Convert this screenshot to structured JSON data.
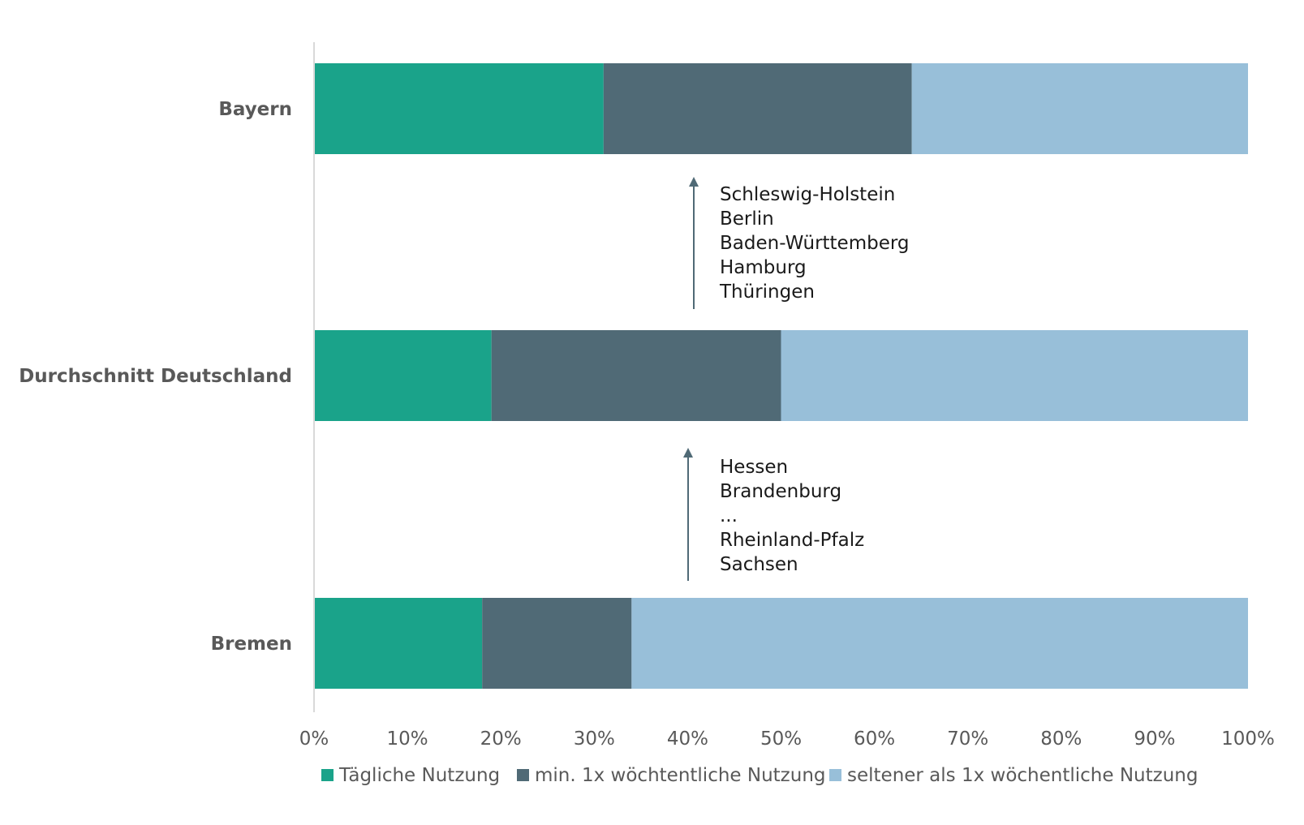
{
  "chart_data": {
    "type": "bar",
    "orientation": "horizontal",
    "stacked": "100%",
    "categories": [
      "Bayern",
      "Durchschnitt Deutschland",
      "Bremen"
    ],
    "series": [
      {
        "name": "Tägliche Nutzung",
        "values": [
          31,
          19,
          18
        ],
        "color": "#1aa38a"
      },
      {
        "name": "min. 1x wöchtentliche Nutzung",
        "values": [
          33,
          31,
          16
        ],
        "color": "#506a76"
      },
      {
        "name": "seltener als 1x wöchentliche Nutzung",
        "values": [
          36,
          50,
          66
        ],
        "color": "#98bfd9"
      }
    ],
    "xlim": [
      0,
      100
    ],
    "x_ticks": [
      "0%",
      "10%",
      "20%",
      "30%",
      "40%",
      "50%",
      "60%",
      "70%",
      "80%",
      "90%",
      "100%"
    ],
    "legend_position": "bottom",
    "grid": false,
    "annotations": [
      {
        "between": [
          "Durchschnitt Deutschland",
          "Bayern"
        ],
        "arrow": "up",
        "lines": [
          "Schleswig-Holstein",
          "Berlin",
          "Baden-Württemberg",
          "Hamburg",
          "Thüringen"
        ]
      },
      {
        "between": [
          "Bremen",
          "Durchschnitt Deutschland"
        ],
        "arrow": "up",
        "lines": [
          "Hessen",
          "Brandenburg",
          "...",
          "Rheinland-Pfalz",
          "Sachsen"
        ]
      }
    ],
    "arrow_color": "#506a76"
  }
}
